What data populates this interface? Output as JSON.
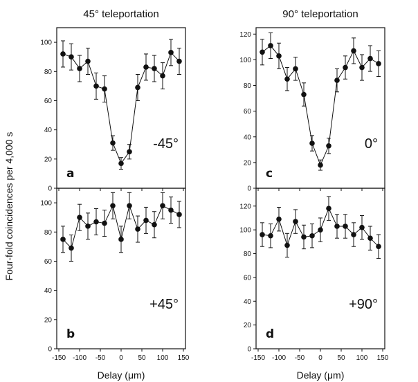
{
  "figure": {
    "y_axis_label": "Four-fold coincidences per 4,000 s"
  },
  "chart_data": [
    {
      "type": "scatter",
      "panel_letter": "a",
      "column_title": "45° teleportation",
      "inset_label": "-45°",
      "xlabel": "",
      "xlim": [
        -155,
        155
      ],
      "ylim": [
        0,
        110
      ],
      "yticks": [
        0,
        20,
        40,
        60,
        80,
        100
      ],
      "xticks": [
        -150,
        -100,
        -50,
        0,
        50,
        100,
        150
      ],
      "x": [
        -140,
        -120,
        -100,
        -80,
        -60,
        -40,
        -20,
        0,
        20,
        40,
        60,
        80,
        100,
        120,
        140
      ],
      "y": [
        92,
        90,
        82,
        87,
        70,
        68,
        31,
        17,
        25,
        69,
        83,
        82,
        77,
        93,
        87
      ],
      "err": [
        9,
        9,
        9,
        9,
        9,
        9,
        5,
        4,
        5,
        9,
        9,
        9,
        9,
        9,
        9
      ]
    },
    {
      "type": "scatter",
      "panel_letter": "b",
      "column_title": "",
      "inset_label": "+45°",
      "xlabel": "Delay (μm)",
      "xlim": [
        -155,
        155
      ],
      "ylim": [
        0,
        110
      ],
      "yticks": [
        0,
        20,
        40,
        60,
        80,
        100
      ],
      "xticks": [
        -150,
        -100,
        -50,
        0,
        50,
        100,
        150
      ],
      "xticklabels": [
        "-150",
        "-100",
        "-50",
        "0",
        "50",
        "100",
        "150"
      ],
      "x": [
        -140,
        -120,
        -100,
        -80,
        -60,
        -40,
        -20,
        0,
        20,
        40,
        60,
        80,
        100,
        120,
        140
      ],
      "y": [
        75,
        69,
        90,
        84,
        87,
        86,
        98,
        75,
        98,
        82,
        88,
        85,
        98,
        95,
        92
      ],
      "err": [
        9,
        9,
        9,
        9,
        9,
        9,
        9,
        9,
        9,
        9,
        9,
        9,
        9,
        9,
        9
      ]
    },
    {
      "type": "scatter",
      "panel_letter": "c",
      "column_title": "90° teleportation",
      "inset_label": "0°",
      "xlabel": "",
      "xlim": [
        -155,
        155
      ],
      "ylim": [
        0,
        125
      ],
      "yticks": [
        0,
        20,
        40,
        60,
        80,
        100,
        120
      ],
      "xticks": [
        -150,
        -100,
        -50,
        0,
        50,
        100,
        150
      ],
      "x": [
        -140,
        -120,
        -100,
        -80,
        -60,
        -40,
        -20,
        0,
        20,
        40,
        60,
        80,
        100,
        120,
        140
      ],
      "y": [
        106,
        111,
        103,
        85,
        93,
        73,
        35,
        18,
        33,
        84,
        94,
        107,
        94,
        101,
        97
      ],
      "err": [
        10,
        10,
        10,
        9,
        9,
        9,
        6,
        4,
        6,
        9,
        9,
        10,
        10,
        10,
        10
      ]
    },
    {
      "type": "scatter",
      "panel_letter": "d",
      "column_title": "",
      "inset_label": "+90°",
      "xlabel": "Delay (μm)",
      "xlim": [
        -155,
        155
      ],
      "ylim": [
        0,
        135
      ],
      "yticks": [
        0,
        20,
        40,
        60,
        80,
        100,
        120
      ],
      "xticks": [
        -150,
        -100,
        -50,
        0,
        50,
        100,
        150
      ],
      "xticklabels": [
        "-150",
        "-100",
        "-50",
        "0",
        "50",
        "100",
        "150"
      ],
      "x": [
        -140,
        -120,
        -100,
        -80,
        -60,
        -40,
        -20,
        0,
        20,
        40,
        60,
        80,
        100,
        120,
        140
      ],
      "y": [
        96,
        95,
        109,
        87,
        107,
        94,
        95,
        100,
        118,
        103,
        103,
        96,
        102,
        93,
        86
      ],
      "err": [
        10,
        10,
        10,
        10,
        10,
        10,
        10,
        10,
        10,
        10,
        10,
        10,
        10,
        10,
        10
      ]
    }
  ]
}
